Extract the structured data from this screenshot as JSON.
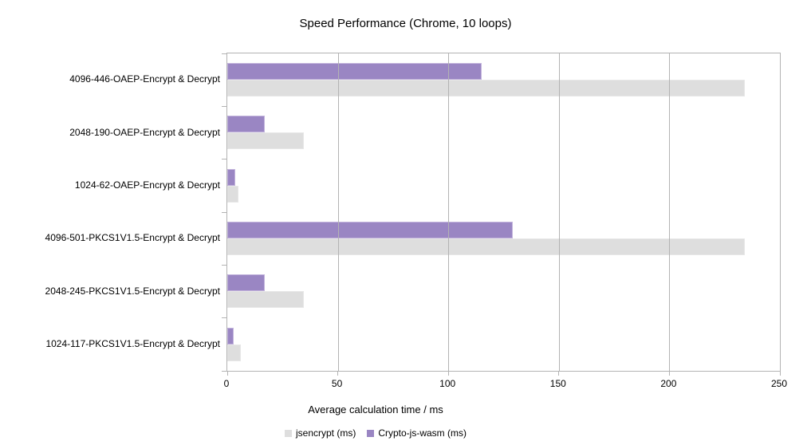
{
  "chart_data": {
    "type": "bar",
    "orientation": "horizontal",
    "title": "Speed Performance (Chrome, 10 loops)",
    "xlabel": "Average calculation time / ms",
    "categories": [
      "4096-446-OAEP-Encrypt & Decrypt",
      "2048-190-OAEP-Encrypt & Decrypt",
      "1024-62-OAEP-Encrypt & Decrypt",
      "4096-501-PKCS1V1.5-Encrypt & Decrypt",
      "2048-245-PKCS1V1.5-Encrypt & Decrypt",
      "1024-117-PKCS1V1.5-Encrypt & Decrypt"
    ],
    "series": [
      {
        "name": "jsencrypt (ms)",
        "color": "#dedede",
        "border_color": "#e7e7e7",
        "values": [
          234,
          34.5,
          5,
          234,
          34.5,
          6
        ]
      },
      {
        "name": "Crypto-js-wasm (ms)",
        "color": "#9a86c3",
        "border_color": "#c2b3dc",
        "values": [
          115,
          17,
          3.5,
          129,
          17,
          3
        ]
      }
    ],
    "xlim": [
      0,
      250
    ],
    "xticks": [
      0,
      50,
      100,
      150,
      200,
      250
    ],
    "grid": true,
    "legend_position": "bottom",
    "frame_color": "#b3b3b3",
    "text_color": "#000000"
  }
}
